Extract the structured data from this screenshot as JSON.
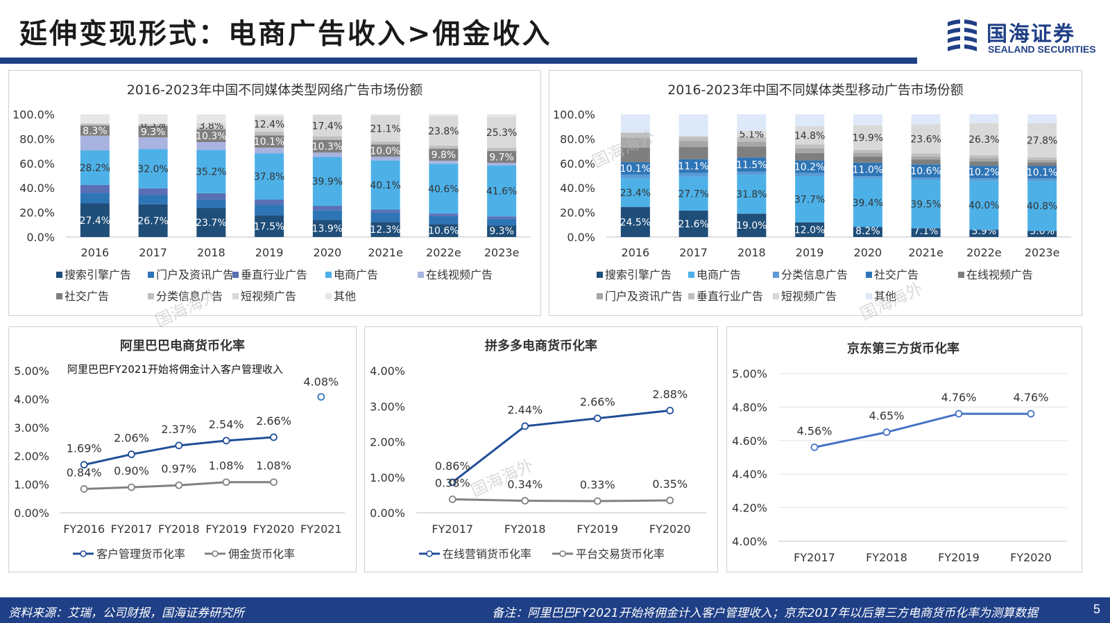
{
  "page": {
    "title": "延伸变现形式：电商广告收入>佣金收入",
    "logo_cn": "国海证券",
    "logo_en": "SEALAND SECURITIES",
    "footer_source": "资料来源：艾瑞，公司财报，国海证券研究所",
    "footer_note": "备注：阿里巴巴FY2021开始将佣金计入客户管理收入；京东2017年以后第三方电商货币化率为测算数据",
    "page_number": "5",
    "watermark": "国海海外",
    "colors": {
      "brand": "#1f3f86"
    }
  },
  "chart_data": [
    {
      "type": "bar",
      "stacked": true,
      "title": "2016-2023年中国不同媒体类型网络广告市场份额",
      "categories": [
        "2016",
        "2017",
        "2018",
        "2019",
        "2020",
        "2021e",
        "2022e",
        "2023e"
      ],
      "yticks": [
        "100.0%",
        "80.0%",
        "60.0%",
        "40.0%",
        "20.0%",
        "0.0%"
      ],
      "ylim": [
        0,
        100
      ],
      "series": [
        {
          "name": "搜索引擎广告",
          "color": "#1f4e79",
          "values": [
            27.4,
            26.7,
            23.7,
            17.5,
            13.9,
            12.3,
            10.6,
            9.3
          ],
          "labels": [
            "27.4%",
            "26.7%",
            "23.7%",
            "17.5%",
            "13.9%",
            "12.3%",
            "10.6%",
            "9.3%"
          ]
        },
        {
          "name": "门户及资讯广告",
          "color": "#2e75b6",
          "values": [
            8.5,
            7.5,
            7.0,
            9.0,
            8.0,
            7.5,
            6.5,
            5.5
          ]
        },
        {
          "name": "垂直行业广告",
          "color": "#5b6fb5",
          "values": [
            6.5,
            5.5,
            5.0,
            4.0,
            3.5,
            2.5,
            2.0,
            2.0
          ]
        },
        {
          "name": "电商广告",
          "color": "#4db1e8",
          "values": [
            28.2,
            32.0,
            35.2,
            37.8,
            39.9,
            40.1,
            40.6,
            41.6
          ],
          "labels": [
            "28.2%",
            "32.0%",
            "35.2%",
            "37.8%",
            "39.9%",
            "40.1%",
            "40.6%",
            "41.6%"
          ]
        },
        {
          "name": "在线视频广告",
          "color": "#a9b3e0",
          "values": [
            12.0,
            9.5,
            6.5,
            4.5,
            3.5,
            3.0,
            2.5,
            2.0
          ]
        },
        {
          "name": "社交广告",
          "color": "#7f7f7f",
          "values": [
            8.3,
            9.3,
            10.3,
            10.1,
            10.3,
            10.0,
            9.8,
            9.7
          ],
          "labels": [
            "8.3%",
            "9.3%",
            "10.3%",
            "10.1%",
            "10.3%",
            "10.0%",
            "9.8%",
            "9.7%"
          ]
        },
        {
          "name": "分类信息广告",
          "color": "#bfbfbf",
          "values": [
            1.5,
            1.5,
            1.5,
            3.0,
            3.0,
            2.5,
            2.5,
            2.5
          ]
        },
        {
          "name": "短视频广告",
          "color": "#d9d9d9",
          "values": [
            0,
            0.3,
            3.8,
            12.4,
            17.4,
            21.1,
            23.8,
            25.3
          ],
          "labels": [
            "",
            "0.3%",
            "3.8%",
            "12.4%",
            "17.4%",
            "21.1%",
            "23.8%",
            "25.3%"
          ]
        },
        {
          "name": "其他",
          "color": "#e7e6e6",
          "values": [
            7.6,
            7.7,
            7.0,
            1.7,
            0.5,
            1.0,
            1.7,
            2.1
          ]
        }
      ]
    },
    {
      "type": "bar",
      "stacked": true,
      "title": "2016-2023年中国不同媒体类型移动广告市场份额",
      "categories": [
        "2016",
        "2017",
        "2018",
        "2019",
        "2020",
        "2021e",
        "2022e",
        "2023e"
      ],
      "yticks": [
        "100.0%",
        "80.0%",
        "60.0%",
        "40.0%",
        "20.0%",
        "0.0%"
      ],
      "ylim": [
        0,
        100
      ],
      "series": [
        {
          "name": "搜索引擎广告",
          "color": "#1f4e79",
          "values": [
            24.5,
            21.6,
            19.0,
            12.0,
            8.2,
            7.1,
            5.9,
            5.0
          ],
          "labels": [
            "24.5%",
            "21.6%",
            "19.0%",
            "12.0%",
            "8.2%",
            "7.1%",
            "5.9%",
            "5.0%"
          ]
        },
        {
          "name": "电商广告",
          "color": "#4db1e8",
          "values": [
            23.4,
            27.7,
            31.8,
            37.7,
            39.4,
            39.5,
            40.0,
            40.8
          ],
          "labels": [
            "23.4%",
            "27.7%",
            "31.8%",
            "37.7%",
            "39.4%",
            "39.5%",
            "40.0%",
            "40.8%"
          ]
        },
        {
          "name": "分类信息广告",
          "color": "#5b9bd5",
          "values": [
            3.0,
            3.0,
            2.5,
            2.5,
            2.0,
            2.0,
            2.0,
            2.0
          ]
        },
        {
          "name": "社交广告",
          "color": "#2e75b6",
          "values": [
            10.1,
            11.1,
            11.5,
            10.2,
            11.0,
            10.6,
            10.2,
            10.1
          ],
          "labels": [
            "10.1%",
            "11.1%",
            "11.5%",
            "10.2%",
            "11.0%",
            "10.6%",
            "10.2%",
            "10.1%"
          ]
        },
        {
          "name": "在线视频广告",
          "color": "#7f7f7f",
          "values": [
            12.0,
            10.0,
            9.0,
            6.0,
            5.0,
            4.0,
            3.5,
            3.0
          ]
        },
        {
          "name": "门户及资讯广告",
          "color": "#a6a6a6",
          "values": [
            8.0,
            5.0,
            4.0,
            4.0,
            3.0,
            2.5,
            2.5,
            2.0
          ]
        },
        {
          "name": "垂直行业广告",
          "color": "#bfbfbf",
          "values": [
            4.0,
            3.5,
            3.5,
            3.0,
            2.5,
            2.5,
            2.5,
            2.0
          ]
        },
        {
          "name": "短视频广告",
          "color": "#d9d9d9",
          "values": [
            0,
            0,
            5.1,
            14.8,
            19.9,
            23.6,
            26.3,
            27.8
          ],
          "labels": [
            "",
            "",
            "5.1%",
            "14.8%",
            "19.9%",
            "23.6%",
            "26.3%",
            "27.8%"
          ]
        },
        {
          "name": "其他",
          "color": "#dde9f8",
          "values": [
            15.0,
            18.1,
            13.6,
            9.8,
            9.0,
            8.2,
            7.1,
            7.3
          ]
        }
      ]
    },
    {
      "type": "line",
      "title": "阿里巴巴电商货币化率",
      "annotation": "阿里巴巴FY2021开始将佣金计入客户管理收入",
      "categories": [
        "FY2016",
        "FY2017",
        "FY2018",
        "FY2019",
        "FY2020",
        "FY2021"
      ],
      "yticks": [
        "5.00%",
        "4.00%",
        "3.00%",
        "2.00%",
        "1.00%",
        "0.00%"
      ],
      "ylim": [
        0,
        5
      ],
      "series": [
        {
          "name": "客户管理货币化率",
          "color": "#1f4e96",
          "values": [
            1.69,
            2.06,
            2.37,
            2.54,
            2.66,
            null
          ],
          "labels": [
            "1.69%",
            "2.06%",
            "2.37%",
            "2.54%",
            "2.66%",
            ""
          ]
        },
        {
          "name": "佣金货币化率",
          "color": "#808080",
          "values": [
            0.84,
            0.9,
            0.97,
            1.08,
            1.08,
            null
          ],
          "labels": [
            "0.84%",
            "0.90%",
            "0.97%",
            "1.08%",
            "1.08%",
            ""
          ]
        }
      ],
      "extra_point": {
        "x": "FY2021",
        "y": 4.08,
        "label": "4.08%",
        "color": "#2e75b6"
      }
    },
    {
      "type": "line",
      "title": "拼多多电商货币化率",
      "categories": [
        "FY2017",
        "FY2018",
        "FY2019",
        "FY2020"
      ],
      "yticks": [
        "4.00%",
        "3.00%",
        "2.00%",
        "1.00%",
        "0.00%"
      ],
      "ylim": [
        0,
        4
      ],
      "series": [
        {
          "name": "在线营销货币化率",
          "color": "#1f4e96",
          "values": [
            0.86,
            2.44,
            2.66,
            2.88
          ],
          "labels": [
            "0.86%",
            "2.44%",
            "2.66%",
            "2.88%"
          ]
        },
        {
          "name": "平台交易货币化率",
          "color": "#808080",
          "values": [
            0.38,
            0.34,
            0.33,
            0.35
          ],
          "labels": [
            "0.38%",
            "0.34%",
            "0.33%",
            "0.35%"
          ]
        }
      ]
    },
    {
      "type": "line",
      "title": "京东第三方货币化率",
      "categories": [
        "FY2017",
        "FY2018",
        "FY2019",
        "FY2020"
      ],
      "yticks": [
        "5.00%",
        "4.80%",
        "4.60%",
        "4.40%",
        "4.20%",
        "4.00%"
      ],
      "ylim": [
        4.0,
        5.0
      ],
      "series": [
        {
          "color": "#4472c4",
          "values": [
            4.56,
            4.65,
            4.76,
            4.76
          ],
          "labels": [
            "4.56%",
            "4.65%",
            "4.76%",
            "4.76%"
          ]
        }
      ]
    }
  ]
}
